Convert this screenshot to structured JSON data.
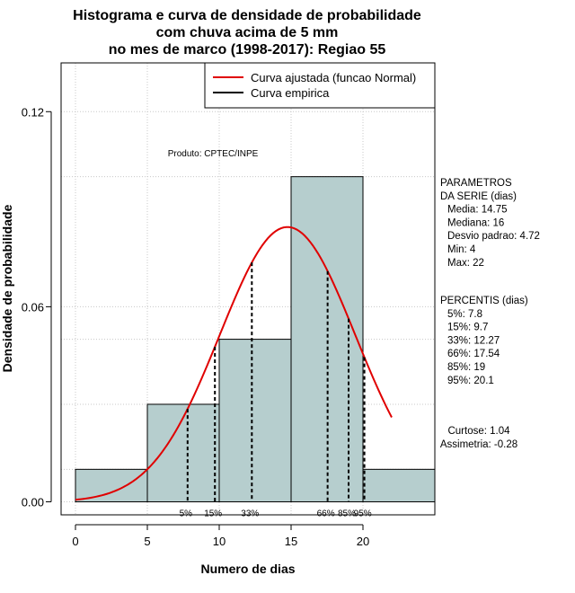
{
  "chart_data": {
    "type": "bar",
    "title_lines": [
      "Histograma e curva de densidade de probabilidade",
      "com chuva acima de 5 mm",
      "no mes de marco (1998-2017): Regiao 55"
    ],
    "xlabel": "Numero de dias",
    "ylabel": "Densidade de probabilidade",
    "xlim": [
      -1,
      25
    ],
    "ylim": [
      -0.004,
      0.135
    ],
    "x_ticks": [
      0,
      5,
      10,
      15,
      20
    ],
    "y_ticks": [
      0.0,
      0.06,
      0.12
    ],
    "y_tick_labels": [
      "0.00",
      "0.06",
      "0.12"
    ],
    "grid": true,
    "histogram": {
      "bin_edges": [
        0,
        5,
        10,
        15,
        20,
        25
      ],
      "density": [
        0.01,
        0.03,
        0.05,
        0.1,
        0.01
      ],
      "fill": "#b6cece"
    },
    "normal_fit": {
      "mean": 14.75,
      "sd": 4.72,
      "x_from": 0,
      "x_to": 22,
      "color": "#e00000"
    },
    "percentile_lines": [
      {
        "label": "5%",
        "x": 7.8
      },
      {
        "label": "15%",
        "x": 9.7
      },
      {
        "label": "33%",
        "x": 12.27
      },
      {
        "label": "66%",
        "x": 17.54
      },
      {
        "label": "85%",
        "x": 19
      },
      {
        "label": "95%",
        "x": 20.1
      }
    ],
    "legend": {
      "position": "top-right",
      "items": [
        {
          "label": "Curva ajustada (funcao Normal)",
          "color": "#e00000"
        },
        {
          "label": "Curva empirica",
          "color": "#000000"
        }
      ]
    },
    "annotation": "Produto: CPTEC/INPE",
    "side_panel": {
      "parametros_lines": [
        "PARAMETROS",
        "DA SERIE (dias)",
        "Media: 14.75",
        "Mediana: 16",
        "Desvio padrao: 4.72",
        "Min: 4",
        "Max: 22"
      ],
      "percentis_lines": [
        "PERCENTIS (dias)",
        "5%: 7.8",
        "15%: 9.7",
        "33%: 12.27",
        "66%: 17.54",
        "85%: 19",
        "95%: 20.1"
      ],
      "shape_lines": [
        "Curtose: 1.04",
        "Assimetria: -0.28"
      ]
    }
  }
}
